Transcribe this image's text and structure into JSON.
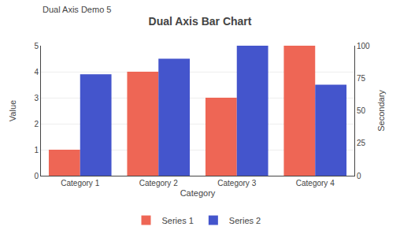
{
  "chart_data": {
    "type": "bar",
    "title": "Dual Axis Bar Chart",
    "subtitle": "Dual Axis Demo 5",
    "xlabel": "Category",
    "ylabel": "Value",
    "y2label": "Secondary",
    "categories": [
      "Category 1",
      "Category 2",
      "Category 3",
      "Category 4"
    ],
    "series": [
      {
        "name": "Series 1",
        "color": "#EE6655",
        "values": [
          1,
          4,
          3,
          5
        ]
      },
      {
        "name": "Series 2",
        "color": "#4455CC",
        "values": [
          78,
          90,
          100,
          70
        ],
        "axis": "y2"
      }
    ],
    "ylim": [
      0,
      5
    ],
    "yticks": [
      0,
      1,
      2,
      3,
      4,
      5
    ],
    "y2lim": [
      0,
      100
    ],
    "y2ticks": [
      0,
      25,
      50,
      75,
      100
    ],
    "grid": true,
    "legend": "bottom"
  }
}
